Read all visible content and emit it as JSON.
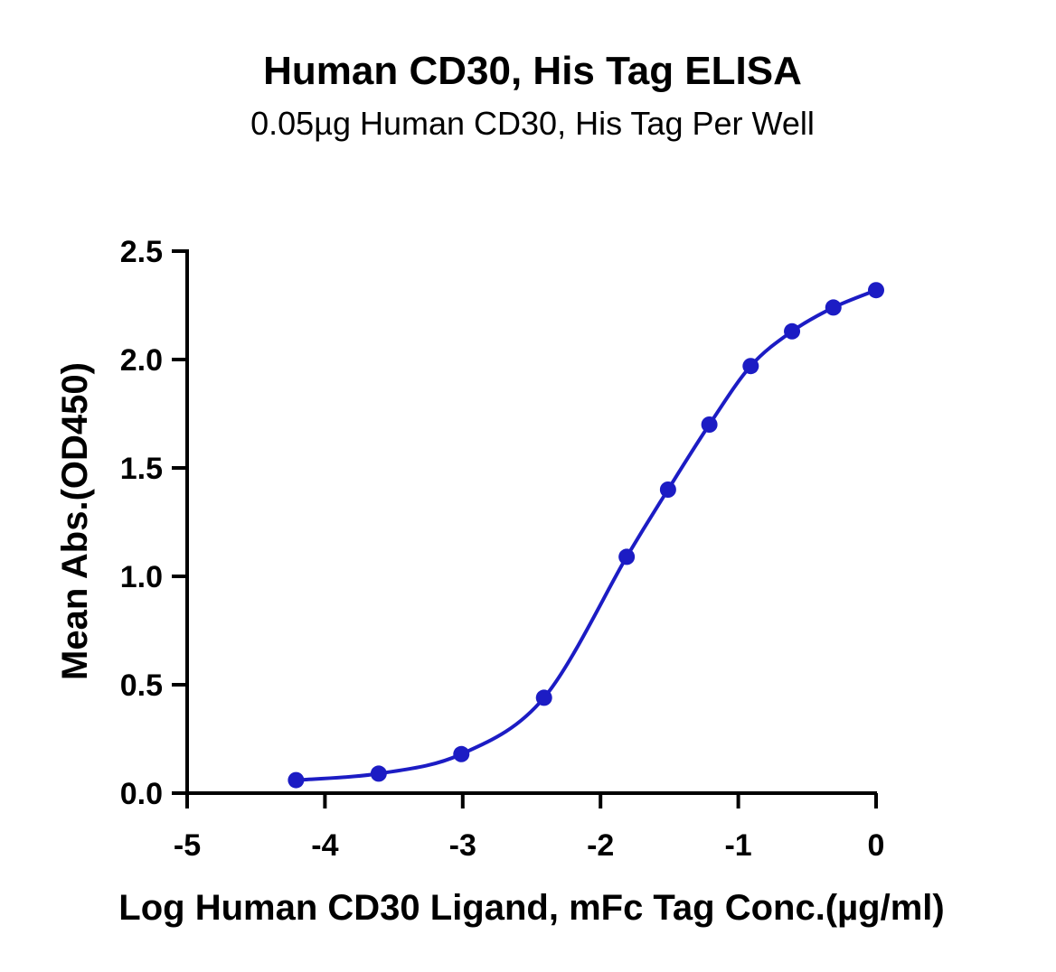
{
  "chart_data": {
    "type": "scatter",
    "title": "Human CD30, His Tag ELISA",
    "subtitle": "0.05µg Human CD30, His Tag Per Well",
    "xlabel": "Log Human CD30 Ligand, mFc Tag Conc.(µg/ml)",
    "ylabel": "Mean Abs.(OD450)",
    "xlim": [
      -5,
      0
    ],
    "ylim": [
      0,
      2.5
    ],
    "x_ticks": [
      -5,
      -4,
      -3,
      -2,
      -1,
      0
    ],
    "x_tick_labels": [
      "-5",
      "-4",
      "-3",
      "-2",
      "-1",
      "0"
    ],
    "y_ticks": [
      0,
      0.5,
      1.0,
      1.5,
      2.0,
      2.5
    ],
    "y_tick_labels": [
      "0.0",
      "0.5",
      "1.0",
      "1.5",
      "2.0",
      "2.5"
    ],
    "grid": false,
    "series": [
      {
        "x": [
          -4.21,
          -3.61,
          -3.01,
          -2.41,
          -1.81,
          -1.51,
          -1.21,
          -0.91,
          -0.61,
          -0.31,
          0.0
        ],
        "y": [
          0.06,
          0.09,
          0.18,
          0.44,
          1.09,
          1.4,
          1.7,
          1.97,
          2.13,
          2.24,
          2.32
        ],
        "color": "#1c1cc4",
        "fit": "4PL sigmoid curve"
      }
    ]
  },
  "colors": {
    "series": "#1c1cc4",
    "axis": "#000000"
  }
}
